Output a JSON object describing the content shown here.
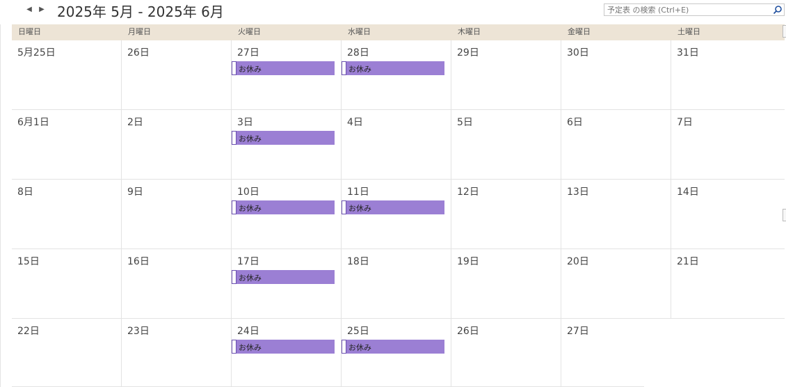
{
  "header": {
    "title": "2025年 5月 - 2025年 6月",
    "search_placeholder": "予定表 の検索 (Ctrl+E)"
  },
  "weekdays": [
    "日曜日",
    "月曜日",
    "火曜日",
    "水曜日",
    "木曜日",
    "金曜日",
    "土曜日"
  ],
  "weeks": [
    [
      "5月25日",
      "26日",
      "27日",
      "28日",
      "29日",
      "30日",
      "31日"
    ],
    [
      "6月1日",
      "2日",
      "3日",
      "4日",
      "5日",
      "6日",
      "7日"
    ],
    [
      "8日",
      "9日",
      "10日",
      "11日",
      "12日",
      "13日",
      "14日"
    ],
    [
      "15日",
      "16日",
      "17日",
      "18日",
      "19日",
      "20日",
      "21日"
    ],
    [
      "22日",
      "23日",
      "24日",
      "25日",
      "26日",
      "27日",
      ""
    ]
  ],
  "events": [
    {
      "week": 0,
      "day": 2,
      "label": "お休み"
    },
    {
      "week": 0,
      "day": 3,
      "label": "お休み"
    },
    {
      "week": 1,
      "day": 2,
      "label": "お休み"
    },
    {
      "week": 2,
      "day": 2,
      "label": "お休み"
    },
    {
      "week": 2,
      "day": 3,
      "label": "お休み"
    },
    {
      "week": 3,
      "day": 2,
      "label": "お休み"
    },
    {
      "week": 4,
      "day": 2,
      "label": "お休み"
    },
    {
      "week": 4,
      "day": 3,
      "label": "お休み"
    }
  ],
  "colors": {
    "event": "#9b7fd4",
    "header_bg": "#ede4d6"
  }
}
